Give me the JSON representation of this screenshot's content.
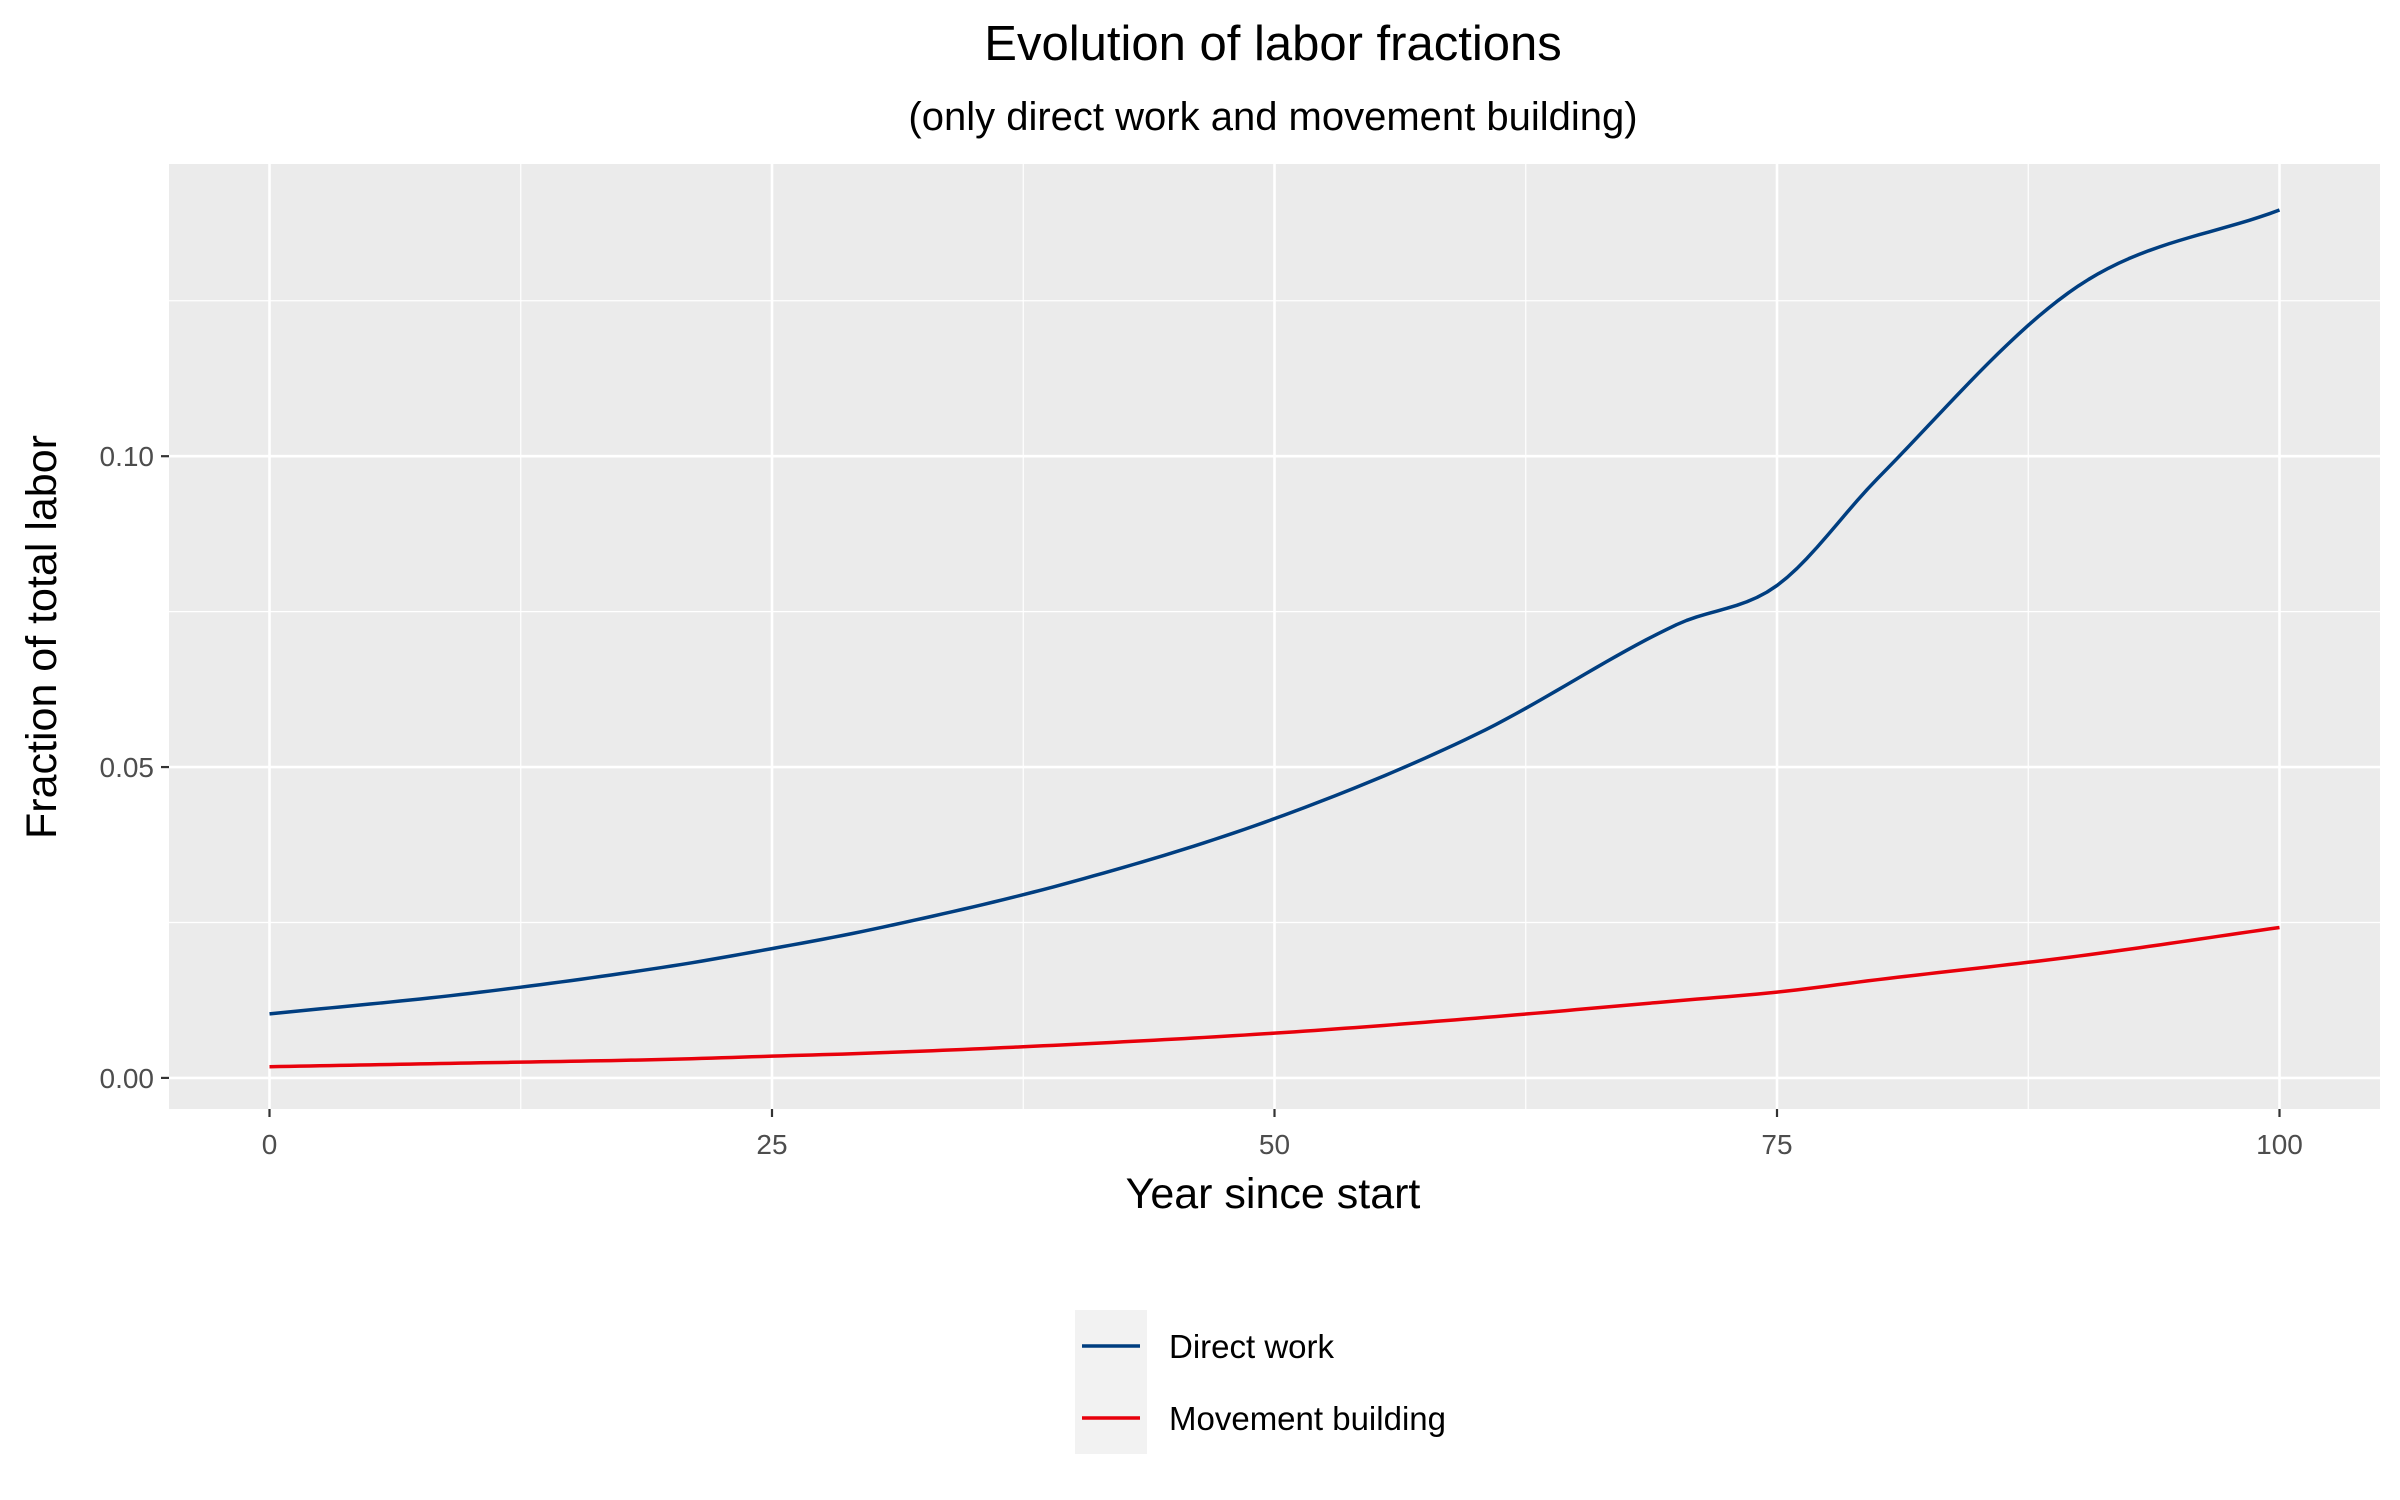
{
  "chart_data": {
    "type": "line",
    "title": "Evolution of labor fractions",
    "subtitle": "(only direct work and movement building)",
    "xlabel": "Year since start",
    "ylabel": "Fraction of total labor",
    "xlim": [
      -5,
      105
    ],
    "ylim": [
      -0.005,
      0.147
    ],
    "x_ticks": [
      0,
      25,
      50,
      75,
      100
    ],
    "x_tick_labels": [
      "0",
      "25",
      "50",
      "75",
      "100"
    ],
    "y_ticks": [
      0.0,
      0.05,
      0.1
    ],
    "y_tick_labels": [
      "0.00",
      "0.05",
      "0.10"
    ],
    "grid": true,
    "legend_position": "bottom",
    "x": [
      0,
      10,
      20,
      25,
      30,
      40,
      50,
      60,
      70,
      75,
      80,
      90,
      100
    ],
    "series": [
      {
        "name": "Direct work",
        "color": "#003e80",
        "values": [
          0.0103,
          0.0136,
          0.018,
          0.0208,
          0.0239,
          0.0316,
          0.0417,
          0.0552,
          0.0729,
          0.0792,
          0.0964,
          0.1274,
          0.1396
        ]
      },
      {
        "name": "Movement building",
        "color": "#e8000b",
        "values": [
          0.0018,
          0.0024,
          0.003,
          0.0035,
          0.004,
          0.0054,
          0.0072,
          0.0096,
          0.0124,
          0.0138,
          0.0158,
          0.0196,
          0.0242
        ]
      }
    ],
    "colors": {
      "panel_background": "#ebebeb",
      "grid_line": "#ffffff",
      "legend_key_background": "#f2f2f2"
    }
  }
}
